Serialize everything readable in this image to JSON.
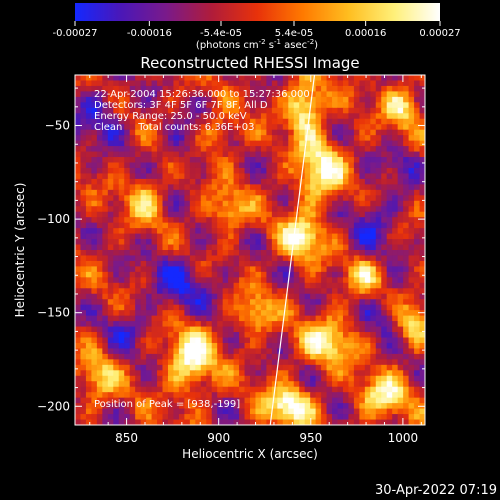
{
  "title": "Reconstructed RHESSI Image",
  "timestamp": "30-Apr-2022 07:19",
  "colorbar": {
    "min": -0.00027,
    "max": 0.00027,
    "tick_labels": [
      "-0.00027",
      "-0.00016",
      "-5.4e-05",
      "5.4e-05",
      "0.00016",
      "0.00027"
    ],
    "tick_values": [
      -0.00027,
      -0.00016,
      -5.4e-05,
      5.4e-05,
      0.00016,
      0.00027
    ],
    "units_prefix": "(photons cm",
    "units_sup1": "-2",
    "units_mid": " s",
    "units_sup2": "-1",
    "units_mid2": " asec",
    "units_sup3": "-2",
    "units_suffix": ")",
    "colors": [
      "#1428ff",
      "#4a17b8",
      "#7a1a8a",
      "#b01c3a",
      "#e8320a",
      "#ff7a00",
      "#ffbe20",
      "#fff07a",
      "#ffffff"
    ]
  },
  "annotations": {
    "line1": "22-Apr-2004 15:26:36.000 to 15:27:36.000",
    "line2": "Detectors: 3F 4F 5F 6F 7F 8F, All D",
    "line3": "Energy Range: 25.0 - 50.0 keV",
    "line4": "Clean     Total counts: 6.36E+03",
    "peak": "Position of Peak = [938,-199]"
  },
  "chart_data": {
    "type": "heatmap",
    "title": "Reconstructed RHESSI Image",
    "xlabel": "Heliocentric X (arcsec)",
    "ylabel": "Heliocentric Y (arcsec)",
    "xlim": [
      822,
      1012
    ],
    "ylim": [
      -210,
      -23
    ],
    "x_ticks": [
      850,
      900,
      950,
      1000
    ],
    "y_ticks": [
      -50,
      -100,
      -150,
      -200
    ],
    "x_tick_labels": [
      "850",
      "900",
      "950",
      "1000"
    ],
    "y_tick_labels": [
      "−50",
      "−100",
      "−150",
      "−200"
    ],
    "peak_position": [
      938,
      -199
    ],
    "limb_line": [
      [
        928,
        -210
      ],
      [
        952,
        -23
      ]
    ],
    "hotspots": [
      {
        "x": 947,
        "y": -40,
        "intensity": 1.0,
        "sx": 7,
        "sy": 10
      },
      {
        "x": 955,
        "y": -75,
        "intensity": 0.9,
        "sx": 9,
        "sy": 12
      },
      {
        "x": 945,
        "y": -110,
        "intensity": 0.95,
        "sx": 8,
        "sy": 8
      },
      {
        "x": 938,
        "y": -200,
        "intensity": 1.0,
        "sx": 9,
        "sy": 7
      },
      {
        "x": 885,
        "y": -175,
        "intensity": 0.95,
        "sx": 9,
        "sy": 12
      },
      {
        "x": 960,
        "y": -165,
        "intensity": 0.8,
        "sx": 10,
        "sy": 9
      },
      {
        "x": 990,
        "y": -195,
        "intensity": 0.8,
        "sx": 9,
        "sy": 8
      },
      {
        "x": 1000,
        "y": -40,
        "intensity": 0.7,
        "sx": 7,
        "sy": 8
      },
      {
        "x": 860,
        "y": -90,
        "intensity": 0.55,
        "sx": 7,
        "sy": 9
      },
      {
        "x": 905,
        "y": -95,
        "intensity": 0.65,
        "sx": 7,
        "sy": 7
      },
      {
        "x": 920,
        "y": -150,
        "intensity": 0.6,
        "sx": 7,
        "sy": 8
      },
      {
        "x": 980,
        "y": -130,
        "intensity": 0.55,
        "sx": 7,
        "sy": 7
      },
      {
        "x": 835,
        "y": -185,
        "intensity": 0.6,
        "sx": 7,
        "sy": 9
      },
      {
        "x": 1005,
        "y": -155,
        "intensity": 0.6,
        "sx": 6,
        "sy": 8
      },
      {
        "x": 900,
        "y": -55,
        "intensity": 0.5,
        "sx": 7,
        "sy": 7
      }
    ],
    "coldspots": [
      {
        "x": 835,
        "y": -45,
        "intensity": 0.9,
        "sx": 10,
        "sy": 10
      },
      {
        "x": 880,
        "y": -135,
        "intensity": 0.8,
        "sx": 14,
        "sy": 12
      },
      {
        "x": 985,
        "y": -100,
        "intensity": 0.8,
        "sx": 10,
        "sy": 12
      },
      {
        "x": 990,
        "y": -150,
        "intensity": 0.7,
        "sx": 8,
        "sy": 8
      },
      {
        "x": 880,
        "y": -60,
        "intensity": 0.6,
        "sx": 8,
        "sy": 8
      },
      {
        "x": 1000,
        "y": -70,
        "intensity": 0.6,
        "sx": 7,
        "sy": 7
      },
      {
        "x": 850,
        "y": -160,
        "intensity": 0.6,
        "sx": 8,
        "sy": 8
      }
    ]
  }
}
